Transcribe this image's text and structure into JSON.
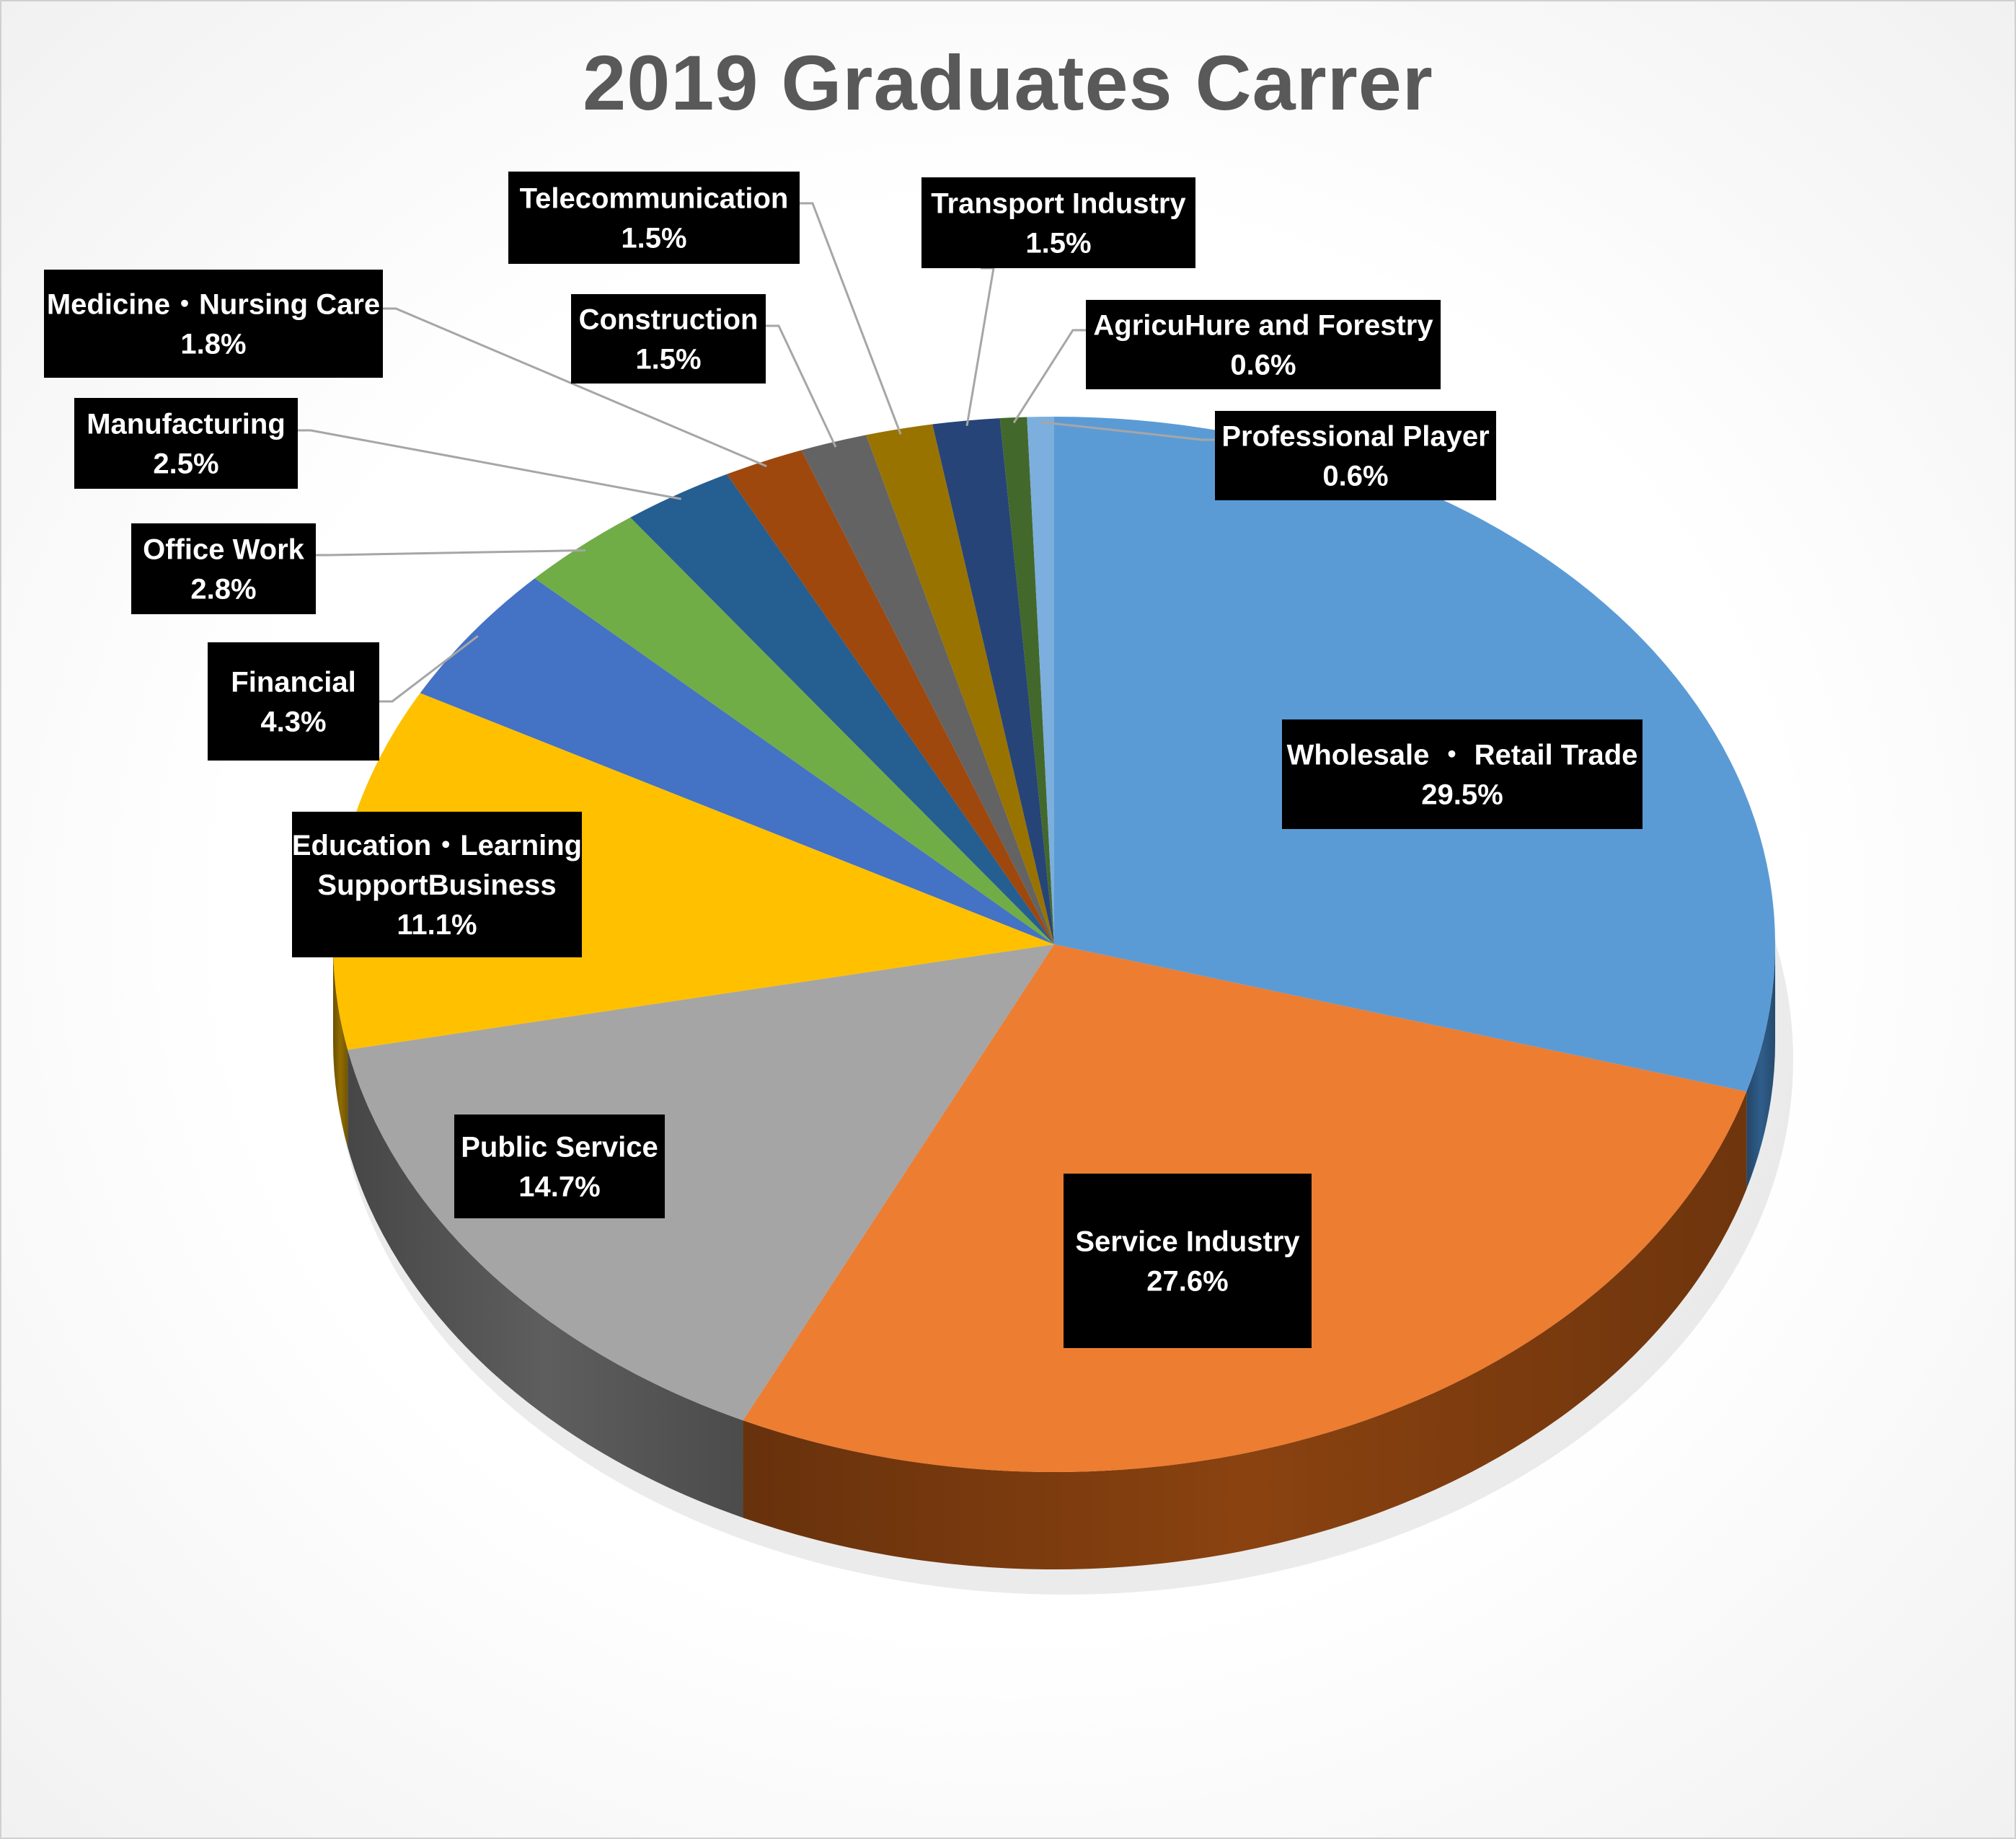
{
  "chart_data": {
    "type": "pie",
    "title": "2019 Graduates Carrer",
    "slices": [
      {
        "name": "Wholesale ・ Retail Trade",
        "label_lines": [
          "Wholesale ・ Retail Trade",
          "29.5%"
        ],
        "value": 29.5,
        "color": "#5b9bd5",
        "side_color": "#2f5d8a"
      },
      {
        "name": "Service Industry",
        "label_lines": [
          "Service Industry",
          "27.6%"
        ],
        "value": 27.6,
        "color": "#ed7d31",
        "side_color": "#8a4210"
      },
      {
        "name": "Public Service",
        "label_lines": [
          "Public Service",
          "14.7%"
        ],
        "value": 14.7,
        "color": "#a5a5a5",
        "side_color": "#5e5e5e"
      },
      {
        "name": "Education・Learning SupportBusiness",
        "label_lines": [
          "Education・Learning",
          "SupportBusiness",
          "11.1%"
        ],
        "value": 11.1,
        "color": "#ffc000",
        "side_color": "#8f6b00"
      },
      {
        "name": "Financial",
        "label_lines": [
          "Financial",
          "4.3%"
        ],
        "value": 4.3,
        "color": "#4472c4",
        "side_color": "#243f6e"
      },
      {
        "name": "Office Work",
        "label_lines": [
          "Office Work",
          "2.8%"
        ],
        "value": 2.8,
        "color": "#70ad47",
        "side_color": "#3d6326"
      },
      {
        "name": "Manufacturing",
        "label_lines": [
          "Manufacturing",
          "2.5%"
        ],
        "value": 2.5,
        "color": "#255e91",
        "side_color": "#12314d"
      },
      {
        "name": "Medicine・Nursing Care",
        "label_lines": [
          "Medicine・Nursing Care",
          "1.8%"
        ],
        "value": 1.8,
        "color": "#9e480e",
        "side_color": "#562606"
      },
      {
        "name": "Construction",
        "label_lines": [
          "Construction",
          "1.5%"
        ],
        "value": 1.5,
        "color": "#636363",
        "side_color": "#333333"
      },
      {
        "name": "Telecommunication",
        "label_lines": [
          "Telecommunication",
          "1.5%"
        ],
        "value": 1.5,
        "color": "#997300",
        "side_color": "#523d00"
      },
      {
        "name": "Transport Industry",
        "label_lines": [
          "Transport Industry",
          "1.5%"
        ],
        "value": 1.5,
        "color": "#264478",
        "side_color": "#132340"
      },
      {
        "name": "AgricuHure and Forestry",
        "label_lines": [
          "AgricuHure and Forestry",
          "0.6%"
        ],
        "value": 0.6,
        "color": "#43682b",
        "side_color": "#233716"
      },
      {
        "name": "Professional Player",
        "label_lines": [
          "Professional Player",
          "0.6%"
        ],
        "value": 0.6,
        "color": "#7cafdd",
        "side_color": "#41698e"
      }
    ],
    "legend": "none",
    "data_labels": "boxed, dark background"
  }
}
